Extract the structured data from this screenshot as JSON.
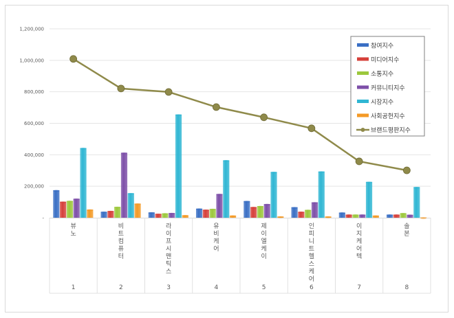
{
  "chart_data": {
    "type": "bar",
    "title": "",
    "xlabel": "",
    "ylabel": "",
    "ylim": [
      0,
      1200000
    ],
    "yticks": [
      "-",
      "200,000",
      "400,000",
      "600,000",
      "800,000",
      "1,000,000",
      "1,200,000"
    ],
    "grid": true,
    "legend_position": "top-right",
    "categories": [
      "뷰노",
      "비트컴퓨터",
      "라이프시맨틱스",
      "유비케어",
      "제이엘케이",
      "인피니트헬스케어",
      "이지케어텍",
      "솔본"
    ],
    "ranks": [
      "1",
      "2",
      "3",
      "4",
      "5",
      "6",
      "7",
      "8"
    ],
    "series": [
      {
        "name": "참여지수",
        "kind": "bar",
        "color": "#3a6fc4",
        "values": [
          175000,
          38000,
          34000,
          58000,
          106000,
          67000,
          33000,
          20000
        ]
      },
      {
        "name": "미디어지수",
        "kind": "bar",
        "color": "#d6403a",
        "values": [
          102000,
          43000,
          25000,
          51000,
          68000,
          38000,
          20000,
          20000
        ]
      },
      {
        "name": "소통지수",
        "kind": "bar",
        "color": "#9cc83c",
        "values": [
          107000,
          69000,
          28000,
          56000,
          74000,
          50000,
          20000,
          29000
        ]
      },
      {
        "name": "커뮤니티지수",
        "kind": "bar",
        "color": "#7d4fa8",
        "values": [
          121000,
          413000,
          30000,
          151000,
          87000,
          98000,
          20000,
          19000
        ]
      },
      {
        "name": "시장지수",
        "kind": "bar",
        "color": "#2fb6d3",
        "values": [
          443000,
          156000,
          656000,
          365000,
          291000,
          294000,
          228000,
          195000
        ]
      },
      {
        "name": "사회공헌지수",
        "kind": "bar",
        "color": "#f49a26",
        "values": [
          52000,
          90000,
          16000,
          14000,
          8000,
          8000,
          14000,
          2000
        ]
      },
      {
        "name": "브랜드평판지수",
        "kind": "line",
        "color": "#8f8a4a",
        "values": [
          1009000,
          821000,
          799000,
          703000,
          638000,
          568000,
          358000,
          301000
        ]
      }
    ]
  }
}
